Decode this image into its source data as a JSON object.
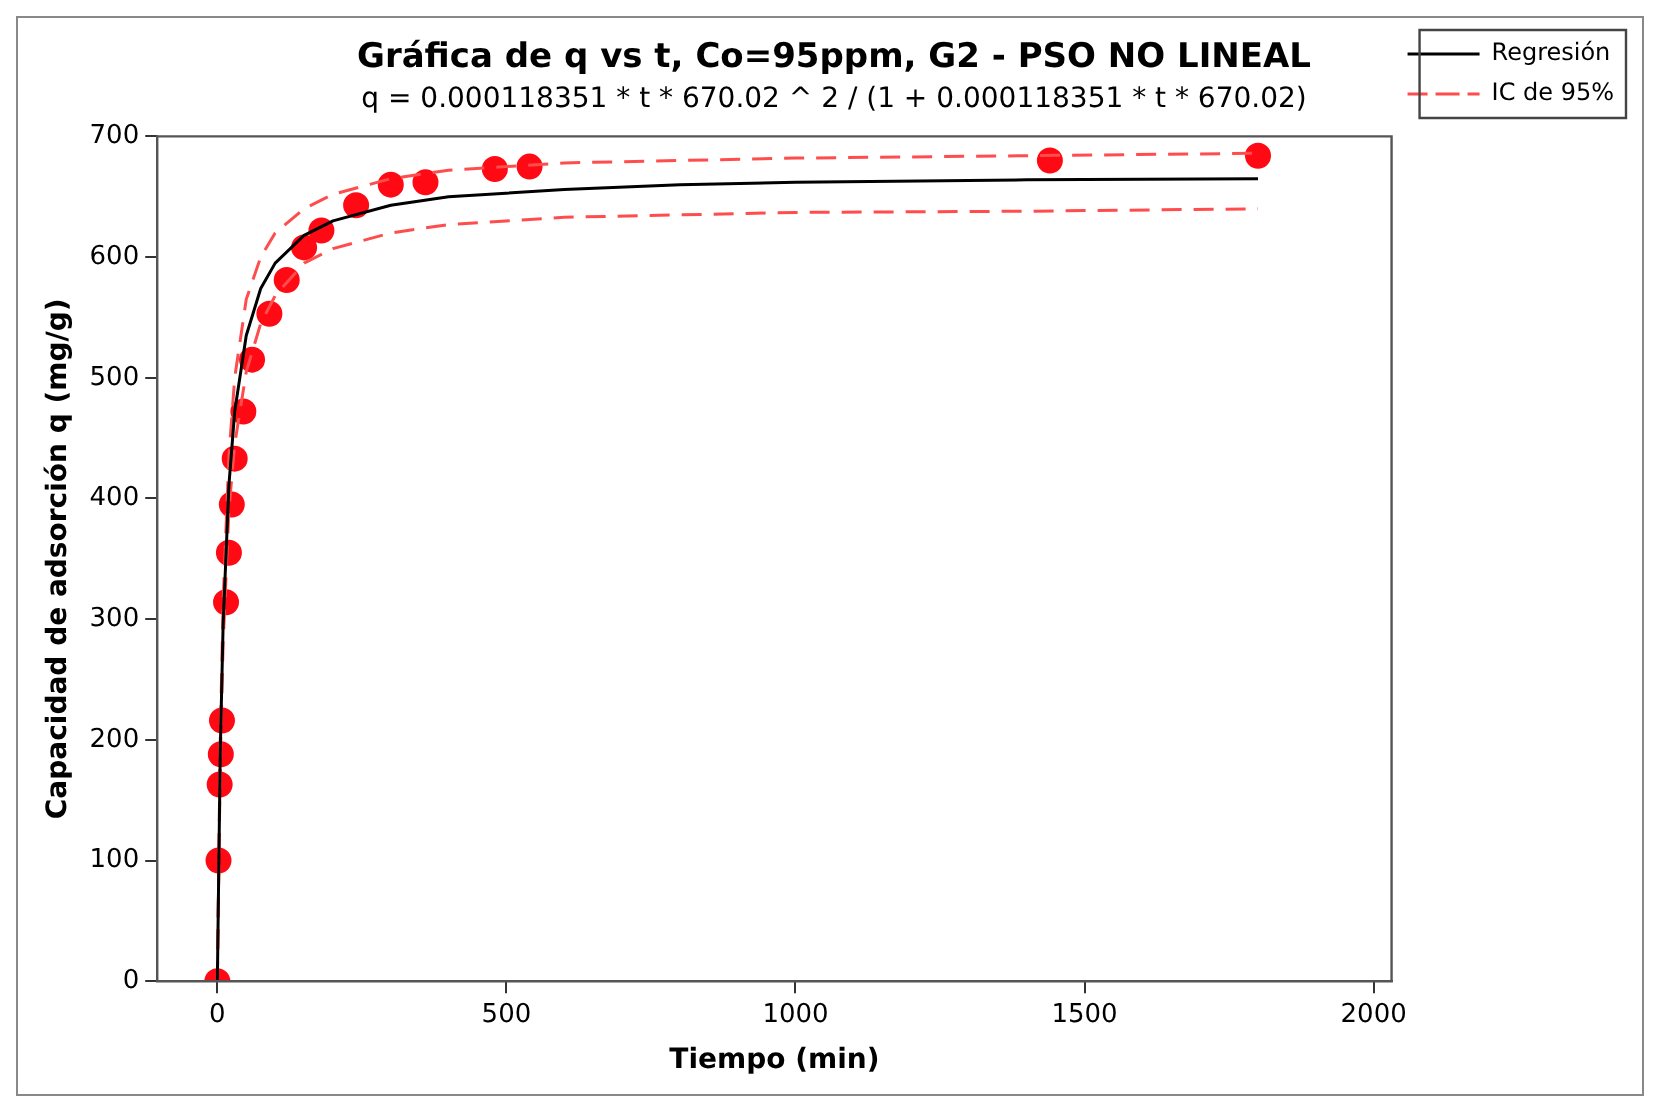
{
  "chart_data": {
    "type": "scatter",
    "title": "Gráfica de q vs t, Co=95ppm, G2 - PSO NO LINEAL",
    "subtitle": "q = 0.000118351 * t * 670.02 ^ 2 / (1 + 0.000118351 * t * 670.02)",
    "xlabel": "Tiempo (min)",
    "ylabel": "Capacidad de adsorción q (mg/g)",
    "xlim": [
      -104,
      2031
    ],
    "xticks": [
      0,
      500,
      1000,
      1500,
      2000
    ],
    "ylim": [
      0,
      700
    ],
    "yticks": [
      0,
      100,
      200,
      300,
      400,
      500,
      600,
      700
    ],
    "grid": false,
    "legend": "top right",
    "series": [
      {
        "color": "#ff0a14",
        "marker": "circle",
        "x": [
          0,
          2,
          4,
          6,
          8,
          15,
          20,
          25,
          30,
          45,
          60,
          90,
          120,
          150,
          180,
          240,
          300,
          360,
          480,
          540,
          1440,
          1800
        ],
        "values": [
          0,
          100,
          163,
          188,
          216,
          314,
          355,
          395,
          433,
          472,
          515,
          553,
          581,
          608,
          622,
          643,
          660,
          662,
          673,
          675,
          680,
          684
        ]
      },
      {
        "type": "line",
        "name": "Regresión",
        "color": "#000000",
        "line_style": "solid",
        "marker": "none",
        "x": [
          0,
          5,
          10,
          20,
          30,
          50,
          75,
          100,
          150,
          200,
          300,
          400,
          600,
          800,
          1000,
          1400,
          1800
        ],
        "values": [
          0,
          190,
          296,
          411,
          472,
          535,
          574,
          595,
          618,
          630,
          643,
          650,
          656,
          660,
          662,
          664,
          665
        ]
      },
      {
        "type": "line",
        "name": "IC de 95%",
        "color": "#ff4d4d",
        "line_style": "dashed",
        "marker": "none",
        "x": [
          0,
          5,
          10,
          20,
          30,
          50,
          75,
          100,
          150,
          200,
          300,
          400,
          600,
          800,
          1000,
          1400,
          1800
        ],
        "values": [
          0,
          200,
          315,
          435,
          500,
          565,
          600,
          620,
          640,
          652,
          665,
          672,
          678,
          680,
          682,
          684,
          686
        ]
      },
      {
        "type": "line",
        "color": "#ff4d4d",
        "line_style": "dashed",
        "marker": "none",
        "x": [
          0,
          5,
          10,
          20,
          30,
          50,
          75,
          100,
          150,
          200,
          300,
          400,
          600,
          800,
          1000,
          1400,
          1800
        ],
        "values": [
          0,
          180,
          280,
          390,
          445,
          505,
          545,
          568,
          595,
          607,
          620,
          627,
          633,
          635,
          637,
          638,
          640
        ]
      }
    ]
  }
}
